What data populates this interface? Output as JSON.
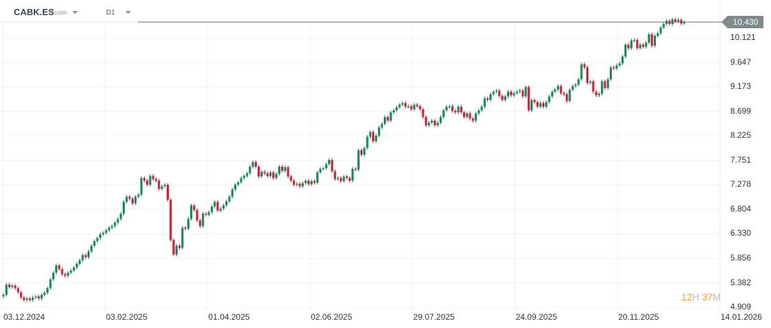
{
  "header": {
    "symbol": "CABK.ES",
    "instrument_type": "Acción",
    "timeframe": "D1"
  },
  "current_price": "10.430",
  "countdown": {
    "hours": "12",
    "hours_unit": "H",
    "minutes": "37",
    "minutes_unit": "M"
  },
  "colors": {
    "up": "#1b8a5a",
    "down": "#d3213b",
    "price_line": "#7f8a8e",
    "grid": "#f0f0f0",
    "countdown": "#f7a21b"
  },
  "chart_data": {
    "type": "candlestick",
    "title": "",
    "y_ticks": [
      "10.121",
      "9.647",
      "9.173",
      "8.699",
      "8.225",
      "7.751",
      "7.278",
      "6.804",
      "6.330",
      "5.856",
      "5.382",
      "4.909"
    ],
    "x_ticks": [
      "03.12.2024",
      "03.02.2025",
      "01.04.2025",
      "02.06.2025",
      "29.07.2025",
      "24.09.2025",
      "20.11.2025",
      "14.01.2026"
    ],
    "ylim": [
      4.909,
      10.121
    ],
    "grid": true,
    "last_price": 10.43,
    "closes": [
      5.15,
      5.35,
      5.3,
      5.33,
      5.28,
      5.2,
      5.1,
      5.05,
      5.08,
      5.05,
      5.1,
      5.12,
      5.08,
      5.15,
      5.19,
      5.28,
      5.45,
      5.58,
      5.72,
      5.65,
      5.55,
      5.52,
      5.58,
      5.62,
      5.68,
      5.75,
      5.82,
      5.92,
      5.88,
      5.99,
      6.1,
      6.19,
      6.25,
      6.32,
      6.35,
      6.4,
      6.45,
      6.48,
      6.55,
      6.62,
      6.72,
      6.95,
      7.05,
      7.01,
      6.92,
      7.05,
      7.09,
      7.41,
      7.36,
      7.28,
      7.45,
      7.39,
      7.36,
      7.2,
      7.25,
      7.28,
      6.99,
      6.21,
      5.93,
      6.1,
      6.06,
      6.45,
      6.43,
      6.62,
      6.88,
      6.79,
      6.59,
      6.48,
      6.72,
      6.7,
      6.75,
      6.86,
      6.95,
      6.78,
      6.82,
      6.88,
      6.96,
      7.05,
      7.19,
      7.28,
      7.33,
      7.41,
      7.45,
      7.5,
      7.63,
      7.72,
      7.63,
      7.44,
      7.53,
      7.5,
      7.45,
      7.52,
      7.41,
      7.49,
      7.63,
      7.55,
      7.62,
      7.44,
      7.36,
      7.28,
      7.3,
      7.25,
      7.31,
      7.36,
      7.29,
      7.35,
      7.32,
      7.52,
      7.59,
      7.6,
      7.68,
      7.76,
      7.54,
      7.39,
      7.41,
      7.35,
      7.44,
      7.41,
      7.36,
      7.59,
      7.57,
      7.95,
      7.86,
      7.99,
      8.21,
      8.3,
      8.12,
      8.23,
      8.39,
      8.46,
      8.59,
      8.52,
      8.68,
      8.72,
      8.78,
      8.83,
      8.86,
      8.79,
      8.8,
      8.74,
      8.83,
      8.8,
      8.74,
      8.59,
      8.43,
      8.48,
      8.52,
      8.43,
      8.48,
      8.59,
      8.72,
      8.79,
      8.8,
      8.71,
      8.68,
      8.79,
      8.68,
      8.59,
      8.66,
      8.56,
      8.52,
      8.66,
      8.72,
      8.79,
      8.95,
      8.92,
      9.03,
      9.08,
      9.1,
      9.0,
      8.92,
      8.99,
      9.08,
      9.01,
      9.05,
      9.08,
      9.1,
      8.99,
      9.17,
      8.72,
      8.92,
      8.88,
      8.79,
      8.86,
      8.79,
      8.88,
      8.99,
      9.08,
      9.12,
      9.19,
      9.05,
      9.03,
      8.9,
      9.12,
      9.19,
      9.22,
      9.32,
      9.61,
      9.55,
      9.25,
      9.28,
      9.08,
      9.01,
      9.04,
      9.28,
      9.15,
      9.32,
      9.55,
      9.53,
      9.59,
      9.63,
      9.76,
      9.99,
      9.92,
      10.07,
      10.08,
      9.92,
      9.99,
      9.95,
      10.03,
      10.19,
      9.97,
      10.16,
      10.21,
      10.32,
      10.39,
      10.45,
      10.39,
      10.48,
      10.44,
      10.47,
      10.4,
      10.43
    ]
  }
}
